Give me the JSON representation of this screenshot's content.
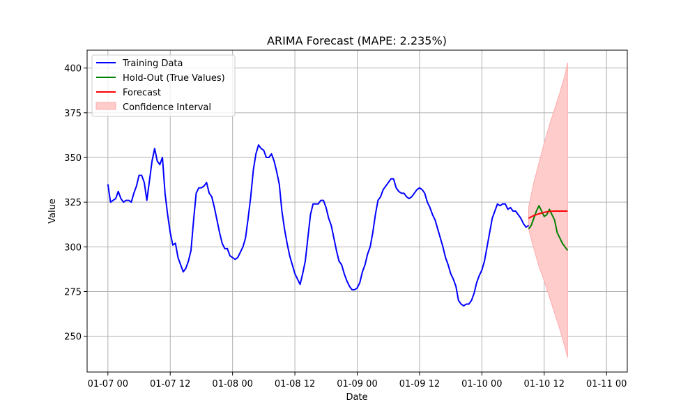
{
  "chart_data": {
    "type": "line",
    "title": "ARIMA Forecast (MAPE: 2.235%)",
    "xlabel": "Date",
    "ylabel": "Value",
    "x_unit": "hours since 01-07 00",
    "xlim": [
      -4,
      100
    ],
    "ylim": [
      230,
      410
    ],
    "grid": true,
    "legend_position": "top-left",
    "x_ticks": [
      {
        "value": 0,
        "label": "01-07 00"
      },
      {
        "value": 12,
        "label": "01-07 12"
      },
      {
        "value": 24,
        "label": "01-08 00"
      },
      {
        "value": 36,
        "label": "01-08 12"
      },
      {
        "value": 48,
        "label": "01-09 00"
      },
      {
        "value": 60,
        "label": "01-09 12"
      },
      {
        "value": 72,
        "label": "01-10 00"
      },
      {
        "value": 84,
        "label": "01-10 12"
      },
      {
        "value": 96,
        "label": "01-11 00"
      }
    ],
    "y_ticks": [
      250,
      275,
      300,
      325,
      350,
      375,
      400
    ],
    "series": [
      {
        "name": "Training Data",
        "color": "#0000ff",
        "points": [
          [
            0,
            335
          ],
          [
            0.5,
            325
          ],
          [
            1,
            326
          ],
          [
            1.5,
            327
          ],
          [
            2,
            331
          ],
          [
            2.5,
            327
          ],
          [
            3,
            325
          ],
          [
            3.5,
            326
          ],
          [
            4,
            326
          ],
          [
            4.5,
            325
          ],
          [
            5,
            330
          ],
          [
            5.5,
            334
          ],
          [
            6,
            340
          ],
          [
            6.5,
            340
          ],
          [
            7,
            336
          ],
          [
            7.5,
            326
          ],
          [
            8,
            337
          ],
          [
            8.5,
            348
          ],
          [
            9,
            355
          ],
          [
            9.5,
            348
          ],
          [
            10,
            346
          ],
          [
            10.5,
            350
          ],
          [
            11,
            330
          ],
          [
            11.5,
            318
          ],
          [
            12,
            308
          ],
          [
            12.5,
            301
          ],
          [
            13,
            302
          ],
          [
            13.5,
            294
          ],
          [
            14,
            290
          ],
          [
            14.5,
            286
          ],
          [
            15,
            288
          ],
          [
            15.5,
            292
          ],
          [
            16,
            298
          ],
          [
            16.5,
            315
          ],
          [
            17,
            330
          ],
          [
            17.5,
            333
          ],
          [
            18,
            333
          ],
          [
            18.5,
            334
          ],
          [
            19,
            336
          ],
          [
            19.5,
            330
          ],
          [
            20,
            328
          ],
          [
            20.5,
            322
          ],
          [
            21,
            315
          ],
          [
            21.5,
            308
          ],
          [
            22,
            302
          ],
          [
            22.5,
            299
          ],
          [
            23,
            299
          ],
          [
            23.5,
            295
          ],
          [
            24,
            294
          ],
          [
            24.5,
            293
          ],
          [
            25,
            294
          ],
          [
            25.5,
            297
          ],
          [
            26,
            300
          ],
          [
            26.5,
            305
          ],
          [
            27,
            316
          ],
          [
            27.5,
            328
          ],
          [
            28,
            343
          ],
          [
            28.5,
            352
          ],
          [
            29,
            357
          ],
          [
            29.5,
            355
          ],
          [
            30,
            354
          ],
          [
            30.5,
            350
          ],
          [
            31,
            350
          ],
          [
            31.5,
            352
          ],
          [
            32,
            348
          ],
          [
            32.5,
            342
          ],
          [
            33,
            335
          ],
          [
            33.5,
            320
          ],
          [
            34,
            310
          ],
          [
            34.5,
            302
          ],
          [
            35,
            295
          ],
          [
            35.5,
            290
          ],
          [
            36,
            285
          ],
          [
            36.5,
            282
          ],
          [
            37,
            279
          ],
          [
            37.5,
            285
          ],
          [
            38,
            292
          ],
          [
            38.5,
            305
          ],
          [
            39,
            318
          ],
          [
            39.5,
            324
          ],
          [
            40,
            324
          ],
          [
            40.5,
            324
          ],
          [
            41,
            326
          ],
          [
            41.5,
            326
          ],
          [
            42,
            322
          ],
          [
            42.5,
            316
          ],
          [
            43,
            312
          ],
          [
            43.5,
            305
          ],
          [
            44,
            298
          ],
          [
            44.5,
            292
          ],
          [
            45,
            290
          ],
          [
            45.5,
            285
          ],
          [
            46,
            281
          ],
          [
            46.5,
            278
          ],
          [
            47,
            276
          ],
          [
            47.5,
            276
          ],
          [
            48,
            277
          ],
          [
            48.5,
            280
          ],
          [
            49,
            286
          ],
          [
            49.5,
            290
          ],
          [
            50,
            296
          ],
          [
            50.5,
            300
          ],
          [
            51,
            308
          ],
          [
            51.5,
            318
          ],
          [
            52,
            326
          ],
          [
            52.5,
            328
          ],
          [
            53,
            332
          ],
          [
            53.5,
            334
          ],
          [
            54,
            336
          ],
          [
            54.5,
            338
          ],
          [
            55,
            338
          ],
          [
            55.5,
            333
          ],
          [
            56,
            331
          ],
          [
            56.5,
            330
          ],
          [
            57,
            330
          ],
          [
            57.5,
            328
          ],
          [
            58,
            327
          ],
          [
            58.5,
            328
          ],
          [
            59,
            330
          ],
          [
            59.5,
            332
          ],
          [
            60,
            333
          ],
          [
            60.5,
            332
          ],
          [
            61,
            330
          ],
          [
            61.5,
            325
          ],
          [
            62,
            322
          ],
          [
            62.5,
            318
          ],
          [
            63,
            315
          ],
          [
            63.5,
            310
          ],
          [
            64,
            305
          ],
          [
            64.5,
            300
          ],
          [
            65,
            294
          ],
          [
            65.5,
            290
          ],
          [
            66,
            285
          ],
          [
            66.5,
            282
          ],
          [
            67,
            278
          ],
          [
            67.5,
            270
          ],
          [
            68,
            268
          ],
          [
            68.5,
            267
          ],
          [
            69,
            268
          ],
          [
            69.5,
            268
          ],
          [
            70,
            270
          ],
          [
            70.5,
            274
          ],
          [
            71,
            280
          ],
          [
            71.5,
            284
          ],
          [
            72,
            287
          ],
          [
            72.5,
            292
          ],
          [
            73,
            300
          ],
          [
            73.5,
            308
          ],
          [
            74,
            316
          ],
          [
            74.5,
            320
          ],
          [
            75,
            324
          ],
          [
            75.5,
            323
          ],
          [
            76,
            324
          ],
          [
            76.5,
            324
          ],
          [
            77,
            321
          ],
          [
            77.5,
            322
          ],
          [
            78,
            320
          ],
          [
            78.5,
            320
          ],
          [
            79,
            318
          ],
          [
            79.5,
            316
          ],
          [
            80,
            313
          ],
          [
            80.5,
            311
          ],
          [
            81,
            312
          ]
        ]
      },
      {
        "name": "Hold-Out (True Values)",
        "color": "#008000",
        "points": [
          [
            81,
            310
          ],
          [
            81.5,
            312
          ],
          [
            82,
            316
          ],
          [
            82.5,
            320
          ],
          [
            83,
            323
          ],
          [
            83.5,
            320
          ],
          [
            84,
            317
          ],
          [
            84.5,
            318
          ],
          [
            85,
            321
          ],
          [
            85.5,
            318
          ],
          [
            86,
            315
          ],
          [
            86.5,
            308
          ],
          [
            87,
            305
          ],
          [
            87.5,
            302
          ],
          [
            88,
            300
          ],
          [
            88.5,
            298
          ]
        ]
      },
      {
        "name": "Forecast",
        "color": "#ff0000",
        "points": [
          [
            81,
            316
          ],
          [
            82,
            317.5
          ],
          [
            83,
            318.5
          ],
          [
            84,
            319.3
          ],
          [
            85,
            319.8
          ],
          [
            86,
            320
          ],
          [
            87,
            320
          ],
          [
            88,
            320
          ],
          [
            88.5,
            320
          ]
        ]
      }
    ],
    "confidence_interval": {
      "name": "Confidence Interval",
      "color": "#ffcccc",
      "points": [
        [
          81,
          310,
          322
        ],
        [
          82,
          299,
          336
        ],
        [
          83,
          289,
          347
        ],
        [
          84,
          281,
          358
        ],
        [
          85,
          272,
          368
        ],
        [
          86,
          263,
          377
        ],
        [
          87,
          254,
          386
        ],
        [
          88,
          244,
          396
        ],
        [
          88.5,
          238,
          403
        ]
      ]
    }
  }
}
